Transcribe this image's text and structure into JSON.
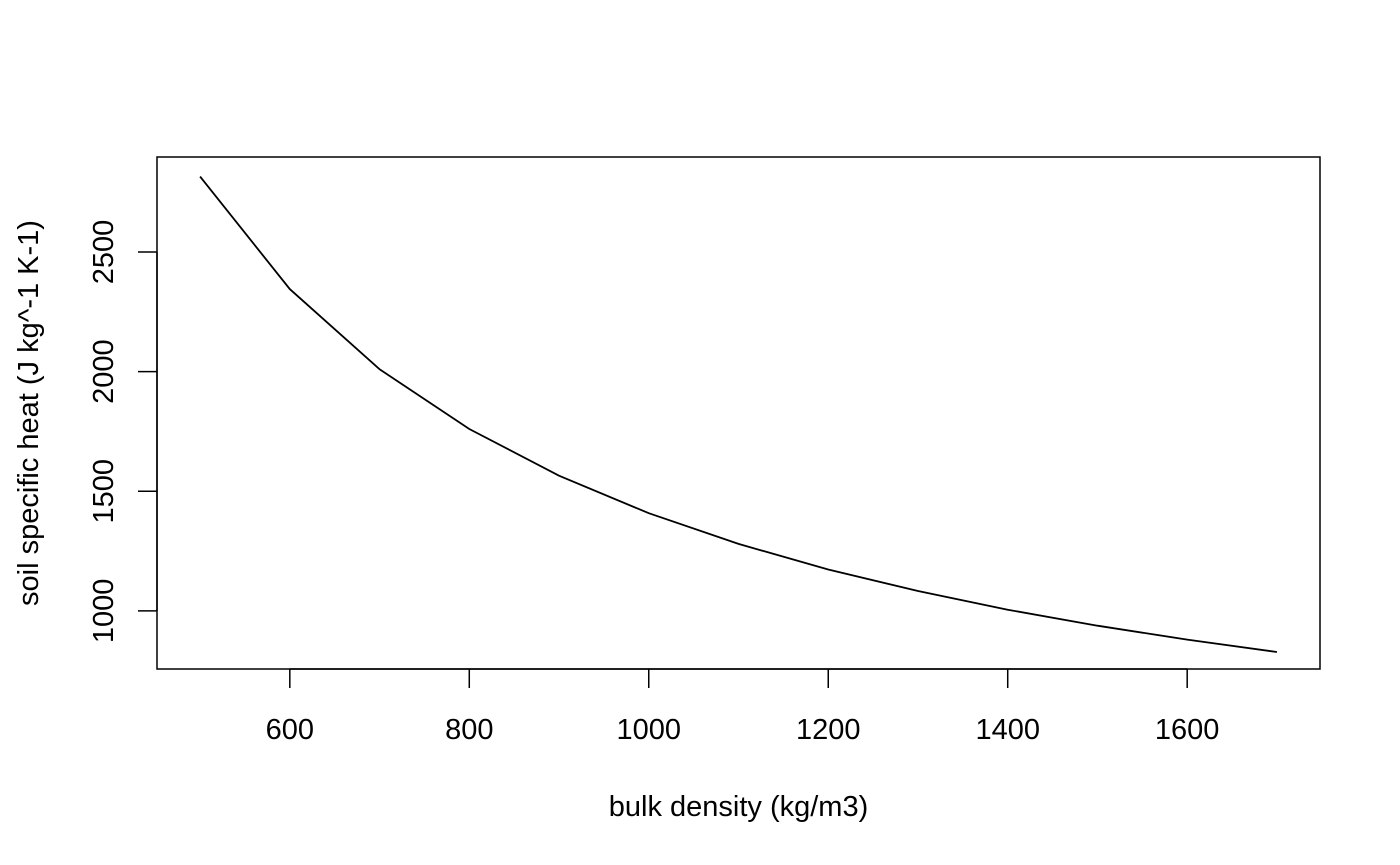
{
  "chart_data": {
    "type": "line",
    "title": "",
    "xlabel": "bulk density (kg/m3)",
    "ylabel": "soil specific heat (J kg^-1 K-1)",
    "xlim": [
      452,
      1748
    ],
    "ylim": [
      757,
      2897
    ],
    "x_ticks": [
      600,
      800,
      1000,
      1200,
      1400,
      1600
    ],
    "x_tick_labels": [
      "600",
      "800",
      "1000",
      "1200",
      "1400",
      "1600"
    ],
    "y_ticks": [
      1000,
      1500,
      2000,
      2500
    ],
    "y_tick_labels": [
      "1000",
      "1500",
      "2000",
      "2500"
    ],
    "grid": false,
    "legend": "none",
    "line_color": "#000000",
    "series": [
      {
        "x": [
          500,
          600,
          700,
          800,
          900,
          1000,
          1100,
          1200,
          1300,
          1400,
          1500,
          1600,
          1700
        ],
        "y": [
          2815,
          2345,
          2010,
          1760,
          1565,
          1408,
          1280,
          1173,
          1083,
          1005,
          938,
          880,
          828
        ]
      }
    ]
  }
}
